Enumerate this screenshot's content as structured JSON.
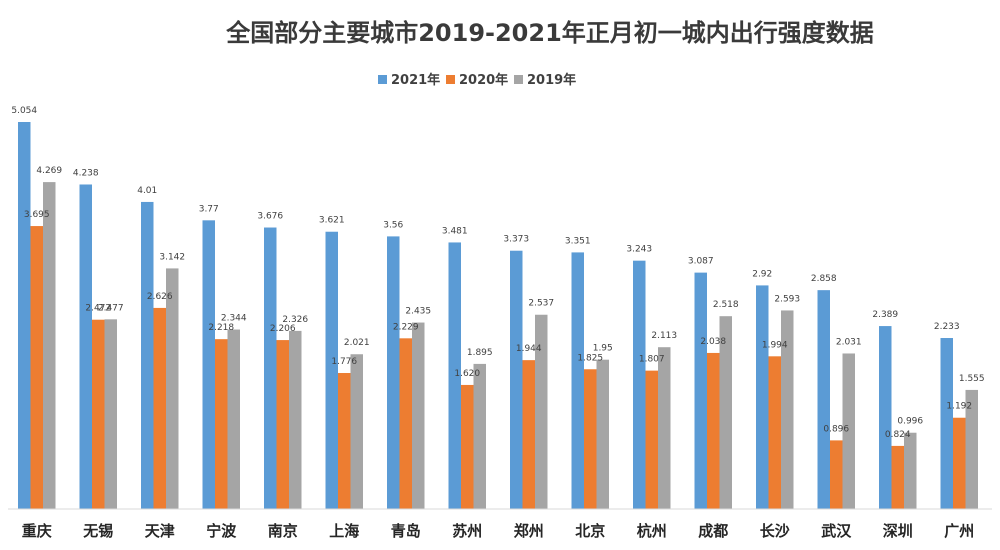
{
  "chart_data": {
    "type": "bar",
    "title": "全国部分主要城市2019-2021年正月初一城内出行强度数据",
    "xlabel": "",
    "ylabel": "",
    "ylim": [
      0,
      5.4
    ],
    "grid": false,
    "legend_position": "top",
    "categories": [
      "重庆",
      "无锡",
      "天津",
      "宁波",
      "南京",
      "上海",
      "青岛",
      "苏州",
      "郑州",
      "北京",
      "杭州",
      "成都",
      "长沙",
      "武汉",
      "深圳",
      "广州"
    ],
    "series": [
      {
        "name": "2021年",
        "color": "#5B9BD5",
        "values": [
          5.054,
          4.238,
          4.01,
          3.77,
          3.676,
          3.621,
          3.56,
          3.481,
          3.373,
          3.351,
          3.243,
          3.087,
          2.92,
          2.858,
          2.389,
          2.233
        ]
      },
      {
        "name": "2020年",
        "color": "#ED7D31",
        "values": [
          3.695,
          2.472,
          2.626,
          2.218,
          2.206,
          1.776,
          2.229,
          1.62,
          1.944,
          1.825,
          1.807,
          2.038,
          1.994,
          0.896,
          0.824,
          1.192
        ]
      },
      {
        "name": "2019年",
        "color": "#A5A5A5",
        "values": [
          4.269,
          2.477,
          3.142,
          2.344,
          2.326,
          2.021,
          2.435,
          1.895,
          2.537,
          1.95,
          2.113,
          2.518,
          2.593,
          2.031,
          0.996,
          1.555
        ]
      }
    ],
    "data_labels": [
      [
        "5.054",
        "3.695",
        "4.269"
      ],
      [
        "4.238",
        "2.472",
        "2.477"
      ],
      [
        "4.01",
        "2.626",
        "3.142"
      ],
      [
        "3.77",
        "2.218",
        "2.344"
      ],
      [
        "3.676",
        "2.206",
        "2.326"
      ],
      [
        "3.621",
        "1.776",
        "2.021"
      ],
      [
        "3.56",
        "2.229",
        "2.435"
      ],
      [
        "3.481",
        "1.620",
        "1.895"
      ],
      [
        "3.373",
        "1.944",
        "2.537"
      ],
      [
        "3.351",
        "1.825",
        "1.95"
      ],
      [
        "3.243",
        "1.807",
        "2.113"
      ],
      [
        "3.087",
        "2.038",
        "2.518"
      ],
      [
        "2.92",
        "1.994",
        "2.593"
      ],
      [
        "2.858",
        "0.896",
        "2.031"
      ],
      [
        "2.389",
        "0.824",
        "0.996"
      ],
      [
        "2.233",
        "1.192",
        "1.555"
      ]
    ]
  }
}
